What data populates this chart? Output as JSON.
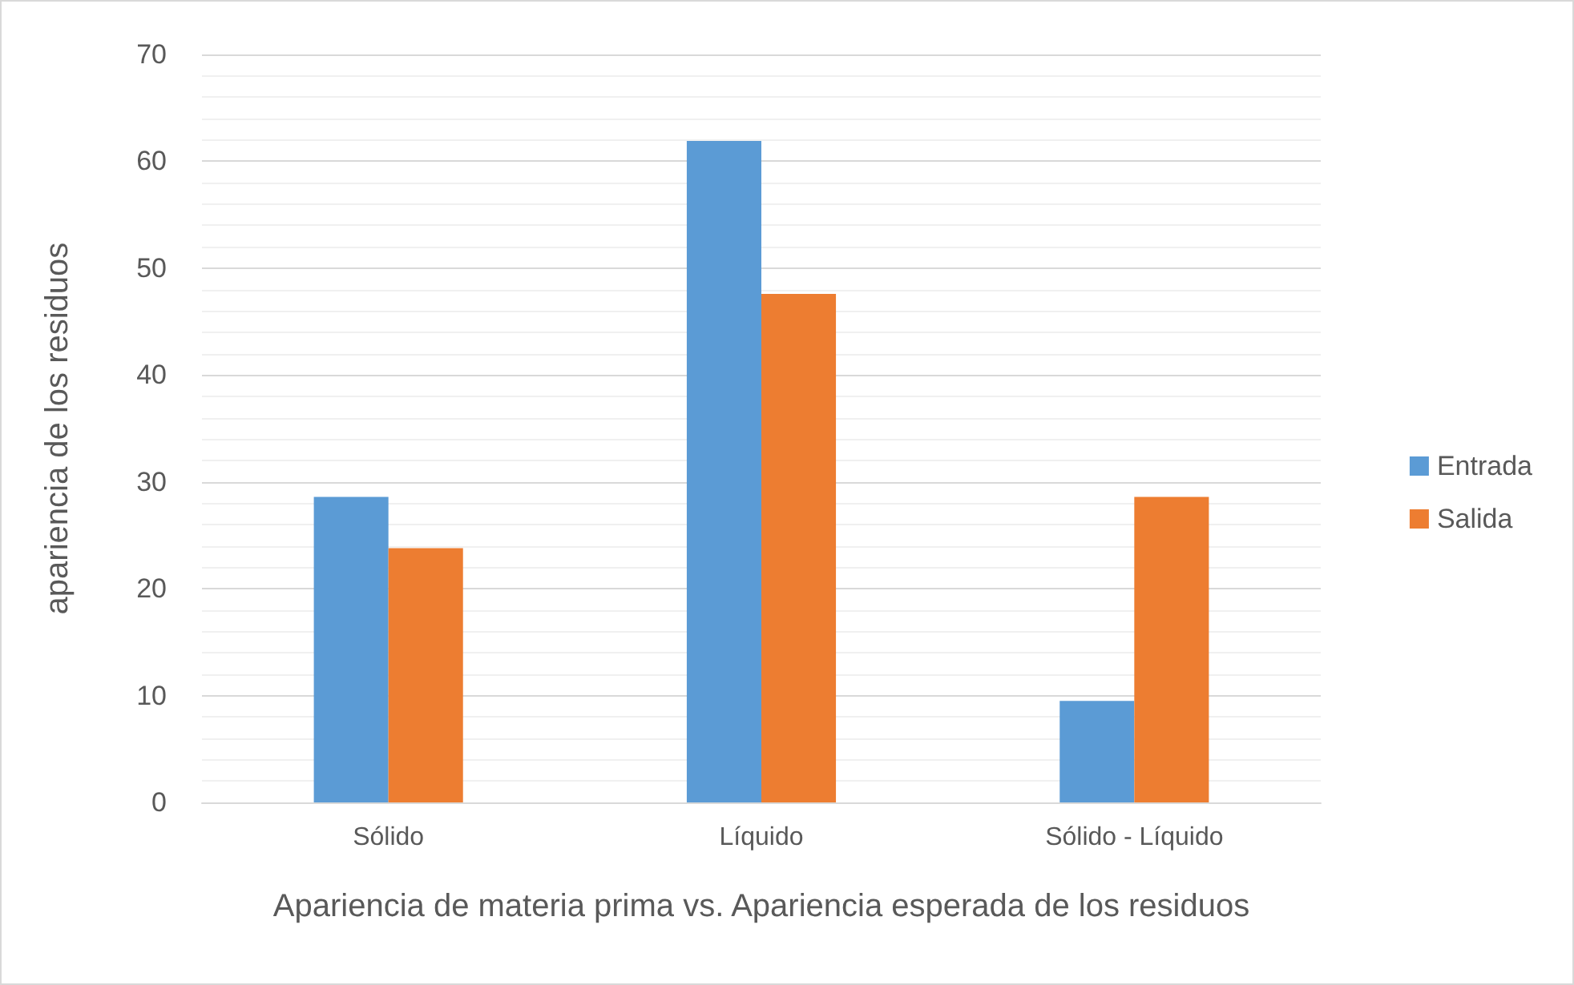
{
  "chart_data": {
    "type": "bar",
    "xlabel": "Apariencia de materia prima vs. Apariencia esperada de los residuos",
    "ylabel": "apariencia de los residuos",
    "categories": [
      "Sólido",
      "Líquido",
      "Sólido - Líquido"
    ],
    "series": [
      {
        "name": "Entrada",
        "color": "#5b9bd5",
        "values": [
          28.6,
          61.9,
          9.5
        ]
      },
      {
        "name": "Salida",
        "color": "#ed7d31",
        "values": [
          23.8,
          47.6,
          28.6
        ]
      }
    ],
    "ylim": [
      0,
      70
    ],
    "yticks": [
      0,
      10,
      20,
      30,
      40,
      50,
      60,
      70
    ],
    "grid": "y",
    "legend": "right"
  }
}
